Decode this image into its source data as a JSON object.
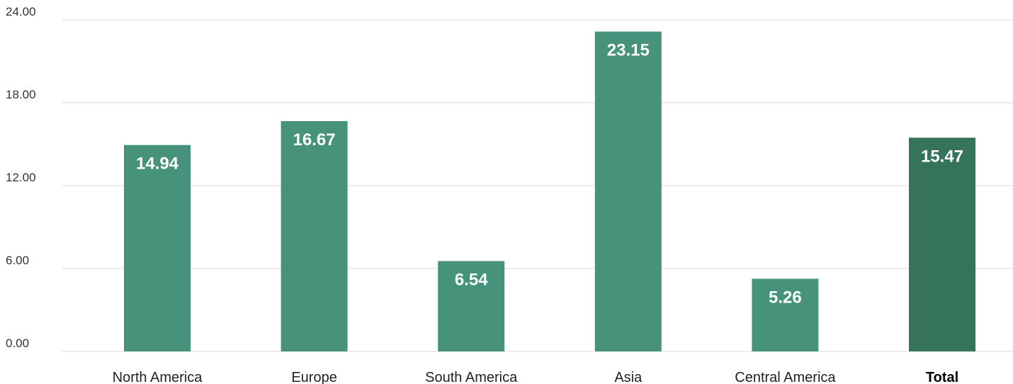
{
  "chart_data": {
    "type": "bar",
    "title": "",
    "xlabel": "",
    "ylabel": "",
    "categories": [
      "North America",
      "Europe",
      "South America",
      "Asia",
      "Central America",
      "Total"
    ],
    "values": [
      14.94,
      16.67,
      6.54,
      23.15,
      5.26,
      15.47
    ],
    "value_labels": [
      "14.94",
      "16.67",
      "6.54",
      "23.15",
      "5.26",
      "15.47"
    ],
    "emphasized_category": "Total",
    "ylim": [
      0,
      24
    ],
    "y_ticks": [
      0,
      6,
      12,
      18,
      24
    ],
    "y_tick_labels": [
      "0.00",
      "6.00",
      "12.00",
      "18.00",
      "24.00"
    ],
    "grid": true,
    "legend": "none",
    "colors": {
      "bar": "#47927a",
      "total_bar": "#35735b",
      "data_label": "#ffffff",
      "grid": "#d9d9d9"
    }
  }
}
